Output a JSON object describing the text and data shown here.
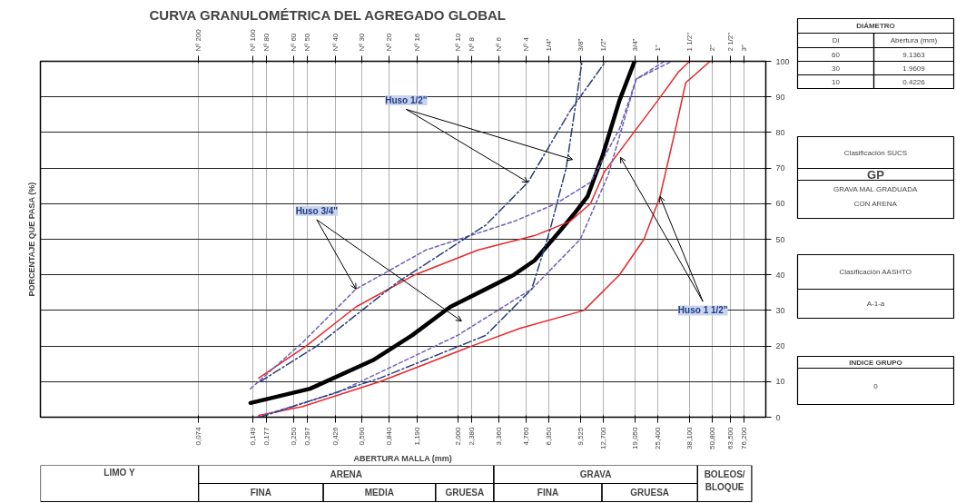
{
  "chart_data": [
    {
      "type": "line",
      "title": "CURVA  GRANULOMÉTRICA DEL AGREGADO GLOBAL",
      "xlabel": "ABERTURA MALLA (mm)",
      "ylabel": "PORCENTAJE QUE PASA (%)",
      "log": "x",
      "xlim": [
        0.01,
        100
      ],
      "ylim": [
        0,
        100
      ],
      "yticks": [
        0,
        10,
        20,
        30,
        40,
        50,
        60,
        70,
        80,
        90,
        100
      ],
      "xticks": [
        {
          "value": 0.074,
          "label": "0,074"
        },
        {
          "value": 0.149,
          "label": "0,149"
        },
        {
          "value": 0.177,
          "label": "0,177"
        },
        {
          "value": 0.25,
          "label": "0,250"
        },
        {
          "value": 0.297,
          "label": "0,297"
        },
        {
          "value": 0.426,
          "label": "0,426"
        },
        {
          "value": 0.59,
          "label": "0,590"
        },
        {
          "value": 0.84,
          "label": "0,840"
        },
        {
          "value": 1.19,
          "label": "1,190"
        },
        {
          "value": 2.0,
          "label": "2,000"
        },
        {
          "value": 2.38,
          "label": "2,380"
        },
        {
          "value": 3.36,
          "label": "3,360"
        },
        {
          "value": 4.76,
          "label": "4,760"
        },
        {
          "value": 6.35,
          "label": "6,350"
        },
        {
          "value": 9.525,
          "label": "9,525"
        },
        {
          "value": 12.7,
          "label": "12,700"
        },
        {
          "value": 19.05,
          "label": "19,050"
        },
        {
          "value": 25.4,
          "label": "25,400"
        },
        {
          "value": 38.1,
          "label": "38,100"
        },
        {
          "value": 50.8,
          "label": "50,800"
        },
        {
          "value": 63.5,
          "label": "63,500"
        },
        {
          "value": 76.2,
          "label": "76,200"
        }
      ],
      "grid": true,
      "marker": "none",
      "series": [
        {
          "color": "#000000",
          "line_style": "solid",
          "x": [
            0.144,
            0.307,
            0.681,
            1.12,
            1.82,
            2.86,
            4.08,
            5.3,
            6.97,
            8.73,
            10.4,
            12.5,
            15.6,
            18.9
          ],
          "values": [
            4,
            8,
            16,
            23,
            31,
            36,
            40,
            44,
            51,
            57,
            62,
            73,
            89,
            100
          ]
        },
        {
          "color": "#e8292b",
          "line_style": "solid",
          "x": [
            0.16,
            0.292,
            0.55,
            1.16,
            2.6,
            5.3,
            8.32,
            10.8,
            12.9,
            18.7,
            25.4,
            33.0,
            38.0
          ],
          "values": [
            11,
            20,
            31,
            40,
            47,
            51,
            55,
            60,
            69,
            80,
            89,
            97,
            100
          ]
        },
        {
          "color": "#e8292b",
          "line_style": "solid",
          "x": [
            0.16,
            0.279,
            0.747,
            2.39,
            4.43,
            9.94,
            15.6,
            21.3,
            26.1,
            31.8,
            36.2,
            49.3
          ],
          "values": [
            0.5,
            3,
            10,
            20,
            25,
            30,
            40,
            50,
            62,
            81,
            94,
            100
          ]
        },
        {
          "color": "#6f5fb8",
          "line_style": "dashed",
          "x": [
            0.144,
            0.279,
            0.55,
            1.34,
            4.08,
            6.97,
            10.8,
            15.6,
            19.3,
            27.6
          ],
          "values": [
            8,
            21,
            36,
            47,
            55,
            60,
            66,
            81,
            95,
            100
          ]
        },
        {
          "color": "#6f5fb8",
          "line_style": "dashed",
          "x": [
            0.156,
            0.438,
            2.0,
            5.12,
            9.49,
            13.5,
            19.3,
            30.3
          ],
          "values": [
            0,
            7,
            23,
            36,
            50,
            68,
            95,
            100
          ]
        },
        {
          "color": "#2a3f7a",
          "line_style": "dashdot",
          "x": [
            0.163,
            0.334,
            0.937,
            2.86,
            4.88,
            8.32,
            13.1
          ],
          "values": [
            10,
            20,
            38,
            54,
            66,
            86,
            100
          ]
        },
        {
          "color": "#2a3f7a",
          "line_style": "dashdot",
          "x": [
            0.163,
            0.747,
            2.86,
            5.12,
            6.41,
            7.93,
            9.7
          ],
          "values": [
            0,
            11,
            23,
            36,
            52,
            70,
            100
          ]
        }
      ],
      "annotations": [
        {
          "text": "Huso 1/2\"",
          "x": 4.88,
          "y": 66
        },
        {
          "text": "Huso 3/4\"",
          "x": 0.55,
          "y": 36
        },
        {
          "text": "Huso 1 1/2\"",
          "x": 26.1,
          "y": 62
        },
        "LIMO Y",
        "ARENA",
        "GRAVA",
        "BOLEOS/ BLOQUE",
        "FINA",
        "MEDIA",
        "GRUESA",
        "FINA",
        "GRUESA",
        "Nº 200",
        "Nº 100",
        "Nº 80",
        "Nº 60",
        "Nº 50",
        "Nº 40",
        "Nº 30",
        "Nº 20",
        "Nº 16",
        "Nº 10",
        "Nº 8",
        "Nº 6",
        "Nº 4",
        "1/4\"",
        "3/8\"",
        "1/2\"",
        "3/4\"",
        "1\"",
        "1 1/2\"",
        "2\"",
        "2 1/2\"",
        "3\""
      ]
    },
    {
      "type": "other",
      "annotations": [
        "DIÁMETRO",
        "Di",
        "Abertura (mm)",
        "60",
        "9.1363",
        "30",
        "1.9609",
        "10",
        "0.4226",
        "Clasificación SUCS",
        "GP",
        "GRAVA MAL GRADUADA CON ARENA",
        "Clasificación AASHTO",
        "A-1-a",
        "INDICE GRUPO",
        "0"
      ]
    }
  ]
}
